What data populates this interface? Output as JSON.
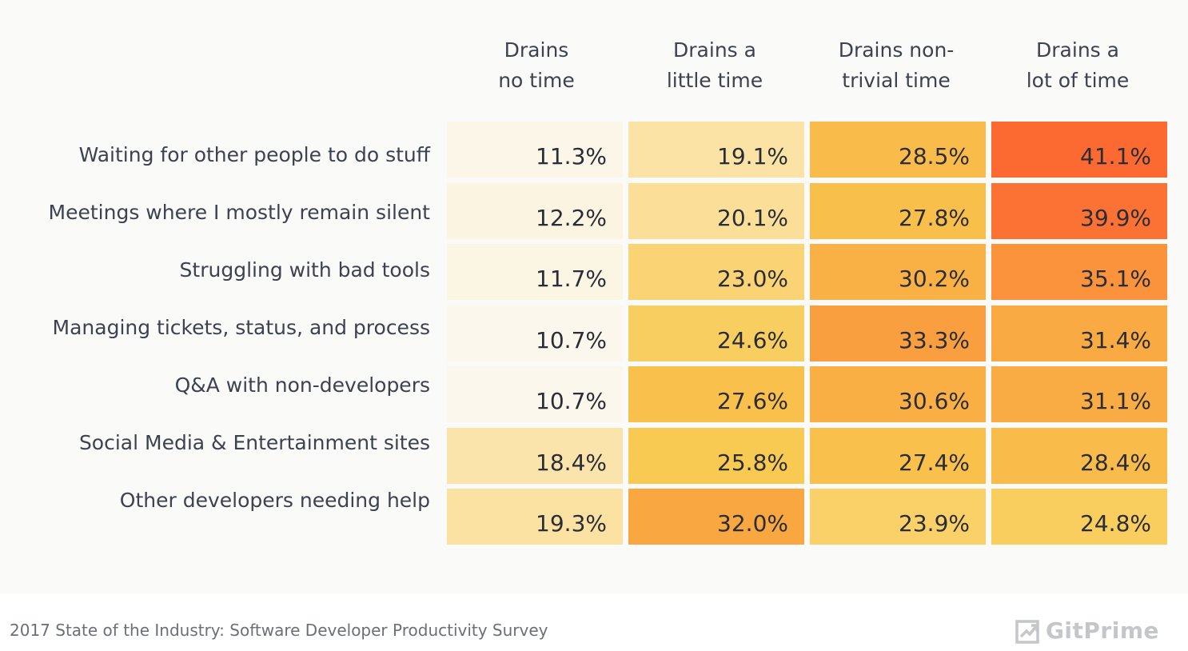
{
  "chart_data": {
    "type": "heatmap",
    "columns": [
      "Drains\nno time",
      "Drains a\nlittle time",
      "Drains non-\ntrivial time",
      "Drains a\nlot of time"
    ],
    "rows": [
      {
        "label": "Waiting for other people to do stuff",
        "values": [
          11.3,
          19.1,
          28.5,
          41.1
        ],
        "display": [
          "11.3%",
          "19.1%",
          "28.5%",
          "41.1%"
        ]
      },
      {
        "label": "Meetings where I mostly remain silent",
        "values": [
          12.2,
          20.1,
          27.8,
          39.9
        ],
        "display": [
          "12.2%",
          "20.1%",
          "27.8%",
          "39.9%"
        ]
      },
      {
        "label": "Struggling with bad tools",
        "values": [
          11.7,
          23.0,
          30.2,
          35.1
        ],
        "display": [
          "11.7%",
          "23.0%",
          "30.2%",
          "35.1%"
        ]
      },
      {
        "label": "Managing tickets, status, and process",
        "values": [
          10.7,
          24.6,
          33.3,
          31.4
        ],
        "display": [
          "10.7%",
          "24.6%",
          "33.3%",
          "31.4%"
        ]
      },
      {
        "label": "Q&A with non-developers",
        "values": [
          10.7,
          27.6,
          30.6,
          31.1
        ],
        "display": [
          "10.7%",
          "27.6%",
          "30.6%",
          "31.1%"
        ]
      },
      {
        "label": "Social Media & Entertainment sites",
        "values": [
          18.4,
          25.8,
          27.4,
          28.4
        ],
        "display": [
          "18.4%",
          "25.8%",
          "27.4%",
          "28.4%"
        ]
      },
      {
        "label": "Other developers needing help",
        "values": [
          19.3,
          32.0,
          23.9,
          24.8
        ],
        "display": [
          "19.3%",
          "32.0%",
          "23.9%",
          "24.8%"
        ]
      }
    ],
    "units": "%",
    "color_scale": [
      "#fbf9f3",
      "#fbe3a6",
      "#f9c94f",
      "#f9a13f",
      "#fc6431"
    ]
  },
  "footer": {
    "source": "2017 State of the Industry: Software Developer Productivity Survey",
    "brand": "GitPrime"
  }
}
